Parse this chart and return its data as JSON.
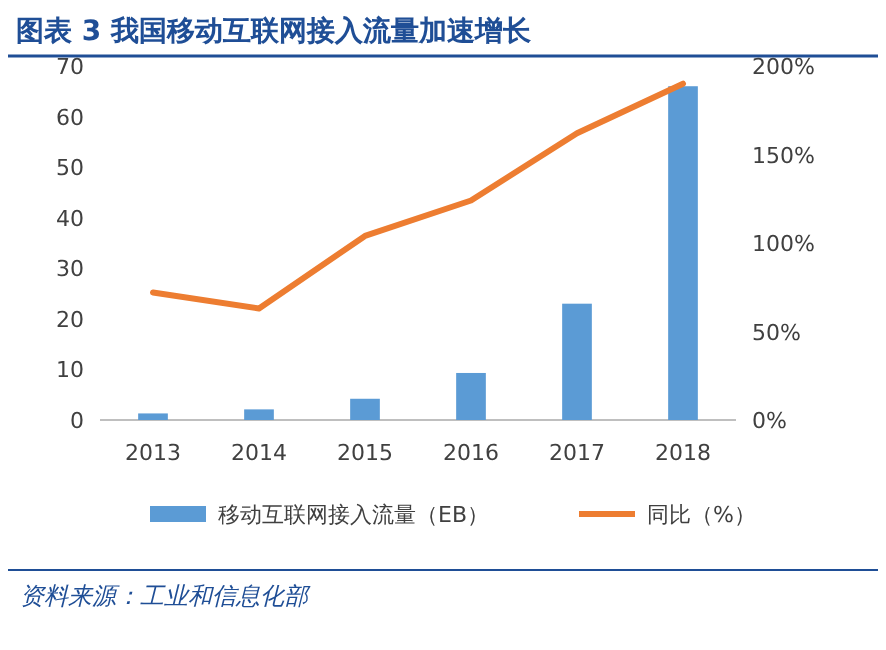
{
  "chart_data": {
    "type": "bar",
    "title": "图表 3  我国移动互联网接入流量加速增长",
    "categories": [
      "2013",
      "2014",
      "2015",
      "2016",
      "2017",
      "2018"
    ],
    "series": [
      {
        "name": "移动互联网接入流量（EB）",
        "color": "#5b9bd5",
        "values": [
          1.3,
          2.1,
          4.2,
          9.3,
          23,
          66
        ]
      },
      {
        "name": "同比（%）",
        "type": "line",
        "axis": "y2",
        "color": "#ed7d31",
        "values": [
          72,
          63,
          104,
          124,
          162,
          190
        ]
      }
    ],
    "ylim": [
      0,
      70
    ],
    "yticks": [
      0,
      10,
      20,
      30,
      40,
      50,
      60,
      70
    ],
    "y2lim": [
      0,
      200
    ],
    "y2ticks": [
      {
        "value": 0,
        "label": "0%"
      },
      {
        "value": 50,
        "label": "50%"
      },
      {
        "value": 100,
        "label": "100%"
      },
      {
        "value": 150,
        "label": "150%"
      },
      {
        "value": 200,
        "label": "200%"
      }
    ],
    "legend": "bottom",
    "grid": false,
    "marker": "none",
    "line_style": "solid",
    "annotations": [
      "资料来源：工业和信息化部"
    ]
  }
}
